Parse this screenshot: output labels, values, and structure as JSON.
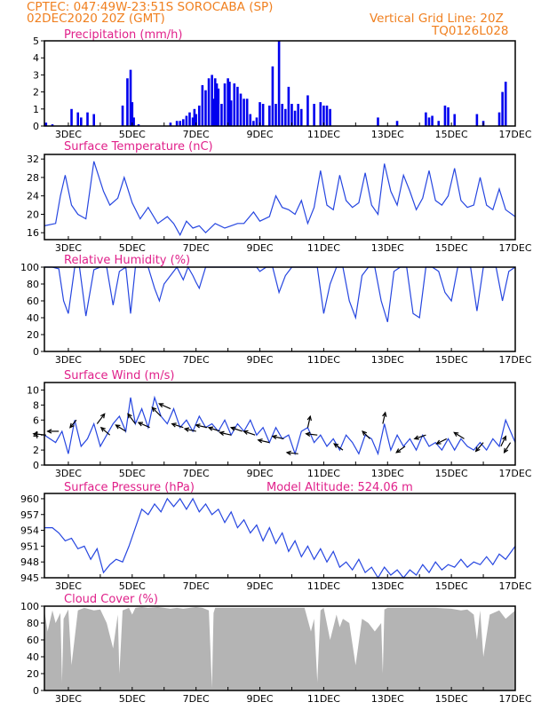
{
  "header": {
    "left_line1": "CPTEC:   047:49W-23:51S   SOROCABA (SP)",
    "left_line2": "02DEC2020 20Z (GMT)",
    "right_line1": "Vertical Grid Line: 20Z",
    "right_line2": "TQ0126L028"
  },
  "colors": {
    "title": "#e0208a",
    "header": "#f08020",
    "precip_bars": "#0000ee",
    "line": "#2646e0",
    "cloud_fill": "#b4b4b4",
    "axis": "#000000"
  },
  "x_axis": {
    "ticks": [
      "3DEC",
      "5DEC",
      "7DEC",
      "9DEC",
      "11DEC",
      "13DEC",
      "15DEC",
      "17DEC"
    ],
    "tick_days": [
      3,
      5,
      7,
      9,
      11,
      13,
      15,
      17
    ],
    "start_day": 2.25,
    "end_day": 17.0
  },
  "chart_data": [
    {
      "id": "precip",
      "type": "bar",
      "title": "Precipitation (mm/h)",
      "ylim": [
        0,
        5
      ],
      "yticks": [
        0,
        1,
        2,
        3,
        4,
        5
      ],
      "x": [
        2.3,
        2.5,
        3.1,
        3.3,
        3.4,
        3.6,
        3.8,
        4.7,
        4.85,
        4.95,
        5.0,
        5.05,
        5.2,
        6.2,
        6.4,
        6.5,
        6.6,
        6.7,
        6.8,
        6.9,
        6.95,
        7.0,
        7.1,
        7.2,
        7.3,
        7.4,
        7.5,
        7.55,
        7.6,
        7.65,
        7.7,
        7.8,
        7.9,
        8.0,
        8.05,
        8.1,
        8.2,
        8.3,
        8.4,
        8.5,
        8.6,
        8.7,
        8.8,
        8.9,
        9.0,
        9.1,
        9.3,
        9.4,
        9.5,
        9.6,
        9.7,
        9.8,
        9.9,
        10.0,
        10.1,
        10.2,
        10.3,
        10.5,
        10.7,
        10.9,
        11.0,
        11.1,
        11.2,
        12.7,
        13.3,
        14.2,
        14.3,
        14.4,
        14.6,
        14.8,
        14.9,
        15.1,
        15.8,
        16.0,
        16.5,
        16.6,
        16.7
      ],
      "values": [
        0.2,
        0.1,
        1.0,
        0.8,
        0.5,
        0.8,
        0.7,
        1.2,
        2.8,
        3.3,
        1.4,
        0.5,
        0.1,
        0.2,
        0.3,
        0.3,
        0.4,
        0.6,
        0.8,
        0.5,
        1.0,
        0.7,
        1.2,
        2.4,
        2.1,
        2.8,
        3.0,
        1.6,
        2.8,
        2.5,
        2.2,
        1.3,
        2.5,
        2.8,
        2.6,
        1.5,
        2.5,
        2.3,
        1.9,
        1.6,
        1.6,
        0.7,
        0.3,
        0.5,
        1.4,
        1.3,
        1.2,
        3.5,
        1.3,
        5.0,
        1.3,
        1.0,
        2.3,
        1.3,
        0.9,
        1.3,
        1.0,
        1.8,
        1.3,
        1.4,
        1.2,
        1.2,
        1.0,
        0.5,
        0.3,
        0.8,
        0.5,
        0.6,
        0.3,
        1.2,
        1.1,
        0.7,
        0.7,
        0.3,
        0.8,
        2.0,
        2.6
      ]
    },
    {
      "id": "temperature",
      "type": "line",
      "title": "Surface Temperature (nC)",
      "ylim": [
        14.5,
        33
      ],
      "yticks": [
        16,
        20,
        24,
        28,
        32
      ],
      "x": [
        2.25,
        2.6,
        2.75,
        2.9,
        3.1,
        3.3,
        3.55,
        3.8,
        4.1,
        4.3,
        4.55,
        4.75,
        5.0,
        5.25,
        5.5,
        5.8,
        6.1,
        6.3,
        6.5,
        6.7,
        6.9,
        7.1,
        7.3,
        7.6,
        7.9,
        8.1,
        8.3,
        8.5,
        8.8,
        9.0,
        9.3,
        9.5,
        9.7,
        9.9,
        10.1,
        10.3,
        10.5,
        10.7,
        10.9,
        11.1,
        11.3,
        11.5,
        11.7,
        11.9,
        12.1,
        12.3,
        12.5,
        12.7,
        12.9,
        13.1,
        13.3,
        13.5,
        13.7,
        13.9,
        14.1,
        14.3,
        14.5,
        14.7,
        14.9,
        15.1,
        15.3,
        15.5,
        15.7,
        15.9,
        16.1,
        16.3,
        16.5,
        16.7,
        17.0
      ],
      "values": [
        17.5,
        18,
        24,
        28.5,
        22,
        20,
        19,
        31.5,
        25,
        22,
        23.5,
        28,
        22.5,
        19,
        21.5,
        18,
        19.5,
        18,
        15.5,
        18.5,
        17,
        17.5,
        16,
        18,
        17,
        17.5,
        18,
        18,
        20.5,
        18.5,
        19.5,
        24,
        21.5,
        21,
        20,
        23,
        18,
        21.5,
        29.5,
        22,
        21,
        28.5,
        23,
        21.5,
        22.5,
        29,
        22,
        20,
        31,
        25,
        22,
        28.5,
        25,
        21,
        23.5,
        29.5,
        23,
        22,
        24,
        30,
        23,
        21.5,
        22,
        28,
        22,
        21,
        25.5,
        21,
        19.5
      ]
    },
    {
      "id": "humidity",
      "type": "line",
      "title": "Relative Humidity (%)",
      "ylim": [
        0,
        100
      ],
      "yticks": [
        0,
        20,
        40,
        60,
        80,
        100
      ],
      "x": [
        2.25,
        2.5,
        2.7,
        2.85,
        3.0,
        3.2,
        3.35,
        3.55,
        3.8,
        4.0,
        4.2,
        4.4,
        4.6,
        4.8,
        4.95,
        5.1,
        5.3,
        5.5,
        5.7,
        5.85,
        6.0,
        6.2,
        6.4,
        6.6,
        6.75,
        6.9,
        7.0,
        7.1,
        7.3,
        7.5,
        7.7,
        7.9,
        8.1,
        8.3,
        8.5,
        8.7,
        8.9,
        9.0,
        9.2,
        9.4,
        9.6,
        9.8,
        10.0,
        10.2,
        10.4,
        10.6,
        10.8,
        11.0,
        11.2,
        11.4,
        11.6,
        11.8,
        12.0,
        12.2,
        12.4,
        12.6,
        12.8,
        13.0,
        13.2,
        13.4,
        13.6,
        13.8,
        14.0,
        14.2,
        14.4,
        14.6,
        14.8,
        15.0,
        15.2,
        15.4,
        15.6,
        15.8,
        16.0,
        16.2,
        16.4,
        16.6,
        16.8,
        17.0
      ],
      "values": [
        100,
        100,
        98,
        60,
        45,
        100,
        100,
        42,
        97,
        100,
        100,
        55,
        95,
        100,
        45,
        100,
        100,
        100,
        75,
        60,
        80,
        90,
        100,
        85,
        100,
        90,
        82,
        75,
        100,
        100,
        100,
        100,
        100,
        100,
        100,
        100,
        100,
        95,
        100,
        100,
        70,
        90,
        100,
        100,
        100,
        100,
        100,
        45,
        80,
        100,
        100,
        60,
        40,
        90,
        100,
        100,
        60,
        35,
        95,
        100,
        100,
        45,
        40,
        100,
        100,
        95,
        70,
        60,
        100,
        100,
        100,
        48,
        100,
        100,
        100,
        60,
        95,
        100
      ],
      "dashed_reference": 100
    },
    {
      "id": "wind",
      "type": "line",
      "title": "Surface Wind (m/s)",
      "ylim": [
        0,
        11
      ],
      "yticks": [
        0,
        2,
        4,
        6,
        8,
        10
      ],
      "x": [
        2.25,
        2.6,
        2.8,
        3.0,
        3.2,
        3.4,
        3.6,
        3.8,
        4.0,
        4.2,
        4.4,
        4.6,
        4.8,
        4.95,
        5.1,
        5.3,
        5.5,
        5.7,
        5.9,
        6.1,
        6.3,
        6.5,
        6.7,
        6.9,
        7.1,
        7.3,
        7.5,
        7.7,
        7.9,
        8.1,
        8.3,
        8.5,
        8.7,
        8.9,
        9.1,
        9.3,
        9.5,
        9.7,
        9.9,
        10.1,
        10.3,
        10.5,
        10.7,
        10.9,
        11.1,
        11.3,
        11.5,
        11.7,
        11.9,
        12.1,
        12.3,
        12.5,
        12.7,
        12.9,
        13.1,
        13.3,
        13.5,
        13.7,
        13.9,
        14.1,
        14.3,
        14.5,
        14.7,
        14.9,
        15.1,
        15.3,
        15.5,
        15.7,
        15.9,
        16.1,
        16.3,
        16.5,
        16.7,
        17.0
      ],
      "values": [
        4.0,
        3.0,
        4.5,
        1.5,
        6.0,
        2.5,
        3.5,
        5.5,
        2.5,
        4.0,
        5.5,
        6.5,
        4.5,
        9.0,
        5.5,
        7.5,
        5.0,
        9.0,
        6.5,
        5.5,
        7.5,
        5.0,
        6.0,
        4.5,
        6.5,
        5.0,
        5.5,
        4.5,
        6.0,
        4.0,
        5.5,
        4.5,
        6.0,
        4.0,
        5.0,
        3.0,
        5.0,
        3.5,
        4.0,
        1.5,
        4.5,
        5.0,
        3.0,
        4.0,
        2.5,
        3.5,
        2.0,
        4.0,
        3.0,
        1.5,
        4.0,
        3.5,
        1.5,
        5.5,
        2.0,
        4.0,
        2.5,
        3.5,
        2.0,
        4.0,
        2.5,
        3.0,
        2.0,
        3.5,
        2.0,
        3.5,
        2.5,
        2.0,
        3.0,
        2.0,
        3.5,
        2.5,
        6.0,
        3.0
      ],
      "arrows": [
        {
          "x": 2.3,
          "u": -1.0,
          "v": 0.1
        },
        {
          "x": 2.7,
          "u": -0.9,
          "v": 0.0
        },
        {
          "x": 3.25,
          "u": -0.5,
          "v": -0.6
        },
        {
          "x": 3.9,
          "u": 0.6,
          "v": 0.8
        },
        {
          "x": 4.3,
          "u": -0.7,
          "v": 0.6
        },
        {
          "x": 4.8,
          "u": -0.8,
          "v": 0.5
        },
        {
          "x": 5.1,
          "u": -0.6,
          "v": 0.8
        },
        {
          "x": 5.55,
          "u": -0.9,
          "v": 0.4
        },
        {
          "x": 5.9,
          "u": -0.7,
          "v": 0.7
        },
        {
          "x": 6.2,
          "u": -0.9,
          "v": 0.4
        },
        {
          "x": 6.6,
          "u": -0.9,
          "v": 0.3
        },
        {
          "x": 7.0,
          "u": -0.9,
          "v": 0.2
        },
        {
          "x": 7.35,
          "u": -0.9,
          "v": 0.2
        },
        {
          "x": 7.75,
          "u": -0.9,
          "v": 0.3
        },
        {
          "x": 8.1,
          "u": -0.9,
          "v": 0.2
        },
        {
          "x": 8.45,
          "u": -0.9,
          "v": 0.3
        },
        {
          "x": 8.85,
          "u": -0.9,
          "v": 0.3
        },
        {
          "x": 9.3,
          "u": -0.9,
          "v": 0.2
        },
        {
          "x": 9.75,
          "u": -0.9,
          "v": 0.2
        },
        {
          "x": 10.2,
          "u": -0.9,
          "v": 0.1
        },
        {
          "x": 10.5,
          "u": 0.2,
          "v": 0.9
        },
        {
          "x": 10.8,
          "u": -0.9,
          "v": 0.1
        },
        {
          "x": 11.6,
          "u": -0.7,
          "v": 0.5
        },
        {
          "x": 12.45,
          "u": -0.6,
          "v": 0.6
        },
        {
          "x": 12.85,
          "u": 0.2,
          "v": 0.9
        },
        {
          "x": 13.55,
          "u": -0.7,
          "v": -0.5
        },
        {
          "x": 14.2,
          "u": -0.9,
          "v": -0.3
        },
        {
          "x": 14.85,
          "u": -0.8,
          "v": -0.4
        },
        {
          "x": 15.4,
          "u": -0.8,
          "v": 0.5
        },
        {
          "x": 16.0,
          "u": -0.6,
          "v": -0.7
        },
        {
          "x": 16.55,
          "u": 0.4,
          "v": 0.8
        },
        {
          "x": 16.85,
          "u": -0.5,
          "v": -0.8
        }
      ]
    },
    {
      "id": "pressure",
      "type": "line",
      "title": "Surface Pressure (hPa)",
      "annotation": "Model Altitude: 524.06 m",
      "ylim": [
        945,
        961
      ],
      "yticks": [
        945,
        948,
        951,
        954,
        957,
        960
      ],
      "x": [
        2.25,
        2.5,
        2.7,
        2.9,
        3.1,
        3.3,
        3.5,
        3.7,
        3.9,
        4.1,
        4.3,
        4.5,
        4.7,
        4.9,
        5.1,
        5.3,
        5.5,
        5.7,
        5.9,
        6.1,
        6.3,
        6.5,
        6.7,
        6.9,
        7.1,
        7.3,
        7.5,
        7.7,
        7.9,
        8.1,
        8.3,
        8.5,
        8.7,
        8.9,
        9.1,
        9.3,
        9.5,
        9.7,
        9.9,
        10.1,
        10.3,
        10.5,
        10.7,
        10.9,
        11.1,
        11.3,
        11.5,
        11.7,
        11.9,
        12.1,
        12.3,
        12.5,
        12.7,
        12.9,
        13.1,
        13.3,
        13.5,
        13.7,
        13.9,
        14.1,
        14.3,
        14.5,
        14.7,
        14.9,
        15.1,
        15.3,
        15.5,
        15.7,
        15.9,
        16.1,
        16.3,
        16.5,
        16.7,
        17.0
      ],
      "values": [
        954.5,
        954.5,
        953.5,
        952,
        952.5,
        950.5,
        951,
        948.5,
        950.5,
        946,
        947.5,
        948.5,
        948,
        951,
        954.5,
        958,
        957,
        959,
        957.5,
        960,
        958.5,
        960,
        958,
        960,
        957.5,
        959,
        957,
        958,
        955.5,
        957.5,
        954.5,
        956,
        953.5,
        955,
        952,
        954.5,
        951.5,
        953.5,
        950,
        952,
        949,
        951,
        948.5,
        950.5,
        948,
        950,
        947,
        948,
        946.5,
        948.5,
        946,
        947,
        945,
        947,
        945.5,
        946.5,
        945,
        946.5,
        945.5,
        947.5,
        946,
        948,
        946.5,
        947.5,
        947,
        948.5,
        947,
        948,
        947.5,
        949,
        947.5,
        949.5,
        948.5,
        951
      ]
    },
    {
      "id": "cloud",
      "type": "area",
      "title": "Cloud Cover (%)",
      "ylim": [
        0,
        100
      ],
      "yticks": [
        0,
        20,
        40,
        60,
        80,
        100
      ],
      "x": [
        2.25,
        2.35,
        2.5,
        2.6,
        2.75,
        2.8,
        2.85,
        3.0,
        3.1,
        3.3,
        3.5,
        3.8,
        4.0,
        4.2,
        4.4,
        4.55,
        4.6,
        4.7,
        4.9,
        5.0,
        5.1,
        5.3,
        5.5,
        5.8,
        6.0,
        6.2,
        6.4,
        6.6,
        6.8,
        7.0,
        7.2,
        7.4,
        7.5,
        7.55,
        7.6,
        7.8,
        8.0,
        8.5,
        9.0,
        9.5,
        10.0,
        10.4,
        10.6,
        10.7,
        10.8,
        10.9,
        11.0,
        11.2,
        11.4,
        11.5,
        11.6,
        11.8,
        12.0,
        12.2,
        12.4,
        12.6,
        12.8,
        12.85,
        12.9,
        13.0,
        13.5,
        14.0,
        14.5,
        15.0,
        15.3,
        15.5,
        15.7,
        15.8,
        15.9,
        16.0,
        16.2,
        16.5,
        16.7,
        17.0
      ],
      "values": [
        95,
        70,
        95,
        80,
        92,
        10,
        85,
        96,
        30,
        95,
        98,
        95,
        96,
        80,
        50,
        90,
        20,
        95,
        98,
        90,
        98,
        99,
        98,
        99,
        98,
        97,
        98,
        97,
        98,
        99,
        98,
        95,
        3,
        92,
        98,
        98,
        98,
        98,
        98,
        98,
        98,
        98,
        70,
        85,
        10,
        95,
        98,
        60,
        90,
        75,
        85,
        80,
        30,
        85,
        80,
        70,
        80,
        20,
        96,
        98,
        98,
        98,
        98,
        97,
        95,
        96,
        90,
        60,
        95,
        40,
        90,
        95,
        85,
        95
      ]
    }
  ]
}
